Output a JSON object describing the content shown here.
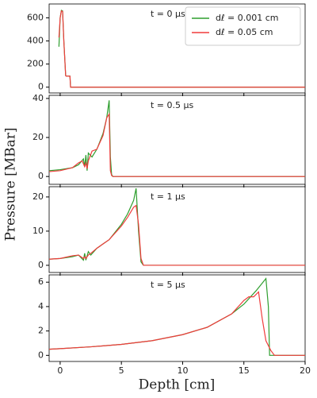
{
  "xlabel": "Depth [cm]",
  "ylabel": "Pressure [MBar]",
  "chart_data": [
    {
      "type": "line",
      "annotation": "t = 0 μs",
      "legend": "upper right",
      "xlim": [
        -0.9,
        20
      ],
      "ylim": [
        -50,
        720
      ],
      "yticks": [
        0,
        200,
        400,
        600
      ],
      "series": [
        {
          "name": "dℓ = 0.001 cm",
          "color": "#2e9e2e",
          "x": [
            -0.1,
            0,
            0.1,
            0.2,
            0.3,
            0.45,
            0.5,
            0.8,
            0.85,
            1.0,
            20
          ],
          "values": [
            350,
            600,
            665,
            660,
            400,
            100,
            95,
            95,
            0,
            0,
            0
          ]
        },
        {
          "name": "dℓ = 0.05 cm",
          "color": "#f03c3c",
          "x": [
            -0.1,
            0,
            0.1,
            0.2,
            0.3,
            0.45,
            0.5,
            0.8,
            0.85,
            1.0,
            20
          ],
          "values": [
            430,
            600,
            660,
            655,
            400,
            100,
            95,
            95,
            0,
            0,
            0
          ]
        }
      ]
    },
    {
      "type": "line",
      "annotation": "t = 0.5 μs",
      "xlim": [
        -0.9,
        20
      ],
      "ylim": [
        -4,
        41.6
      ],
      "yticks": [
        0,
        20,
        40
      ],
      "series": [
        {
          "color": "#2e9e2e",
          "x": [
            -0.9,
            0,
            1,
            1.5,
            1.9,
            2,
            2.1,
            2.2,
            2.3,
            2.6,
            3,
            3.5,
            3.8,
            4.0,
            4.1,
            4.2,
            4.3,
            20
          ],
          "values": [
            3,
            3.5,
            4.5,
            6,
            9,
            5,
            11,
            3,
            12,
            10,
            14,
            22,
            30,
            39,
            10,
            1,
            0,
            0
          ]
        },
        {
          "color": "#f03c3c",
          "x": [
            -0.9,
            0,
            1,
            1.5,
            1.8,
            2,
            2.1,
            2.2,
            2.3,
            2.6,
            3,
            3.5,
            3.8,
            4.0,
            4.1,
            4.2,
            4.3,
            20
          ],
          "values": [
            2.5,
            3,
            4.5,
            7,
            8,
            5,
            7,
            4,
            8,
            13,
            14,
            21,
            30,
            32,
            3,
            0.5,
            0,
            0
          ]
        }
      ]
    },
    {
      "type": "line",
      "annotation": "t = 1 μs",
      "xlim": [
        -0.9,
        20
      ],
      "ylim": [
        -2.1,
        23
      ],
      "yticks": [
        0,
        10,
        20
      ],
      "series": [
        {
          "color": "#2e9e2e",
          "x": [
            -0.9,
            0,
            1,
            1.5,
            1.9,
            2,
            2.1,
            2.3,
            2.5,
            3,
            4,
            5,
            5.5,
            6,
            6.2,
            6.4,
            6.6,
            6.8,
            20
          ],
          "values": [
            1.8,
            2,
            2.5,
            3,
            1.5,
            3.5,
            1.5,
            4,
            3,
            5,
            7.5,
            12,
            15,
            19,
            22.5,
            10,
            1,
            0,
            0
          ]
        },
        {
          "color": "#f03c3c",
          "x": [
            -0.9,
            0,
            1,
            1.5,
            1.9,
            2,
            2.1,
            2.3,
            2.5,
            3,
            4,
            5,
            5.5,
            6,
            6.2,
            6.4,
            6.6,
            6.8,
            20
          ],
          "values": [
            1.8,
            2,
            2.8,
            3,
            2,
            2.5,
            2,
            3,
            3.5,
            5,
            7.5,
            11.5,
            14,
            17,
            17.5,
            12,
            2,
            0,
            0
          ]
        }
      ]
    },
    {
      "type": "line",
      "annotation": "t = 5 μs",
      "xlim": [
        -0.9,
        20
      ],
      "ylim": [
        -0.5,
        6.6
      ],
      "yticks": [
        0,
        2,
        4,
        6
      ],
      "xticks": [
        0,
        5,
        10,
        15,
        20
      ],
      "series": [
        {
          "color": "#2e9e2e",
          "x": [
            -0.9,
            0,
            2.5,
            5,
            7.5,
            10,
            12,
            14,
            15,
            16,
            16.8,
            17,
            17.1,
            20
          ],
          "values": [
            0.5,
            0.55,
            0.7,
            0.9,
            1.2,
            1.7,
            2.3,
            3.4,
            4.2,
            5.3,
            6.3,
            4,
            0,
            0
          ]
        },
        {
          "color": "#f03c3c",
          "x": [
            -0.9,
            0,
            2.5,
            5,
            7.5,
            10,
            12,
            14,
            15,
            15.4,
            15.8,
            16.2,
            16.5,
            16.8,
            17.2,
            17.5,
            20
          ],
          "values": [
            0.5,
            0.55,
            0.7,
            0.9,
            1.2,
            1.7,
            2.3,
            3.4,
            4.5,
            4.8,
            4.8,
            5.2,
            3,
            1.2,
            0.4,
            0,
            0
          ]
        }
      ]
    }
  ]
}
